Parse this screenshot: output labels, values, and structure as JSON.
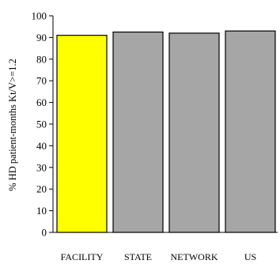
{
  "chart_data": {
    "type": "bar",
    "categories": [
      "FACILITY",
      "STATE",
      "NETWORK",
      "US"
    ],
    "values": [
      91,
      92.5,
      92,
      93
    ],
    "bar_colors": [
      "#ffff00",
      "#a6a6a6",
      "#a6a6a6",
      "#a6a6a6"
    ],
    "bar_outline_color": "#000000",
    "title": "",
    "xlabel": "",
    "ylabel": "% HD patient-months Kt/V>=1.2",
    "ylim": [
      0,
      100
    ],
    "yticks": [
      0,
      10,
      20,
      30,
      40,
      50,
      60,
      70,
      80,
      90,
      100
    ],
    "grid": false,
    "legend": "none"
  }
}
